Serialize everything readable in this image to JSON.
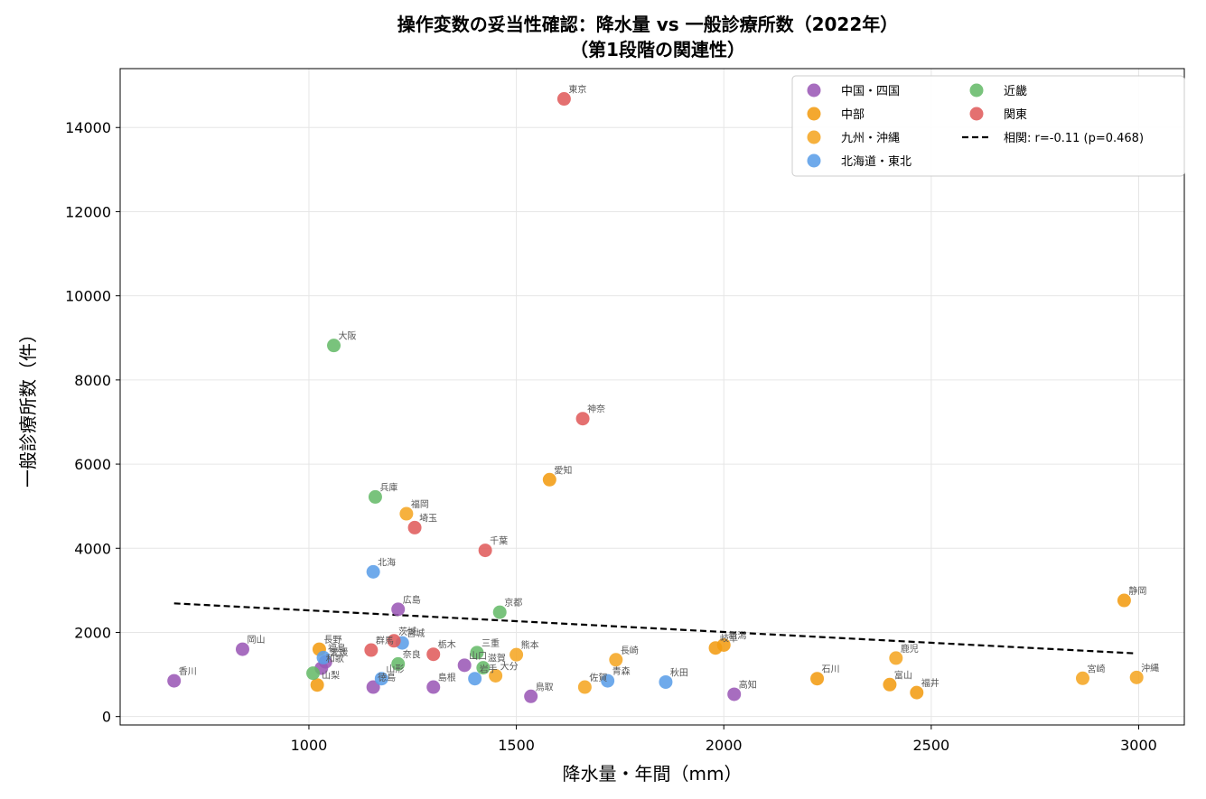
{
  "chart_data": {
    "type": "scatter",
    "title": "操作変数の妥当性確認：降水量 vs 一般診療所数（2022年）",
    "subtitle": "（第1段階の関連性）",
    "xlabel": "降水量・年間（mm）",
    "ylabel": "一般診療所数（件）",
    "xlim": [
      545,
      3110
    ],
    "ylim": [
      -200,
      15400
    ],
    "xticks": [
      1000,
      1500,
      2000,
      2500,
      3000
    ],
    "yticks": [
      0,
      2000,
      4000,
      6000,
      8000,
      10000,
      12000,
      14000
    ],
    "grid": true,
    "legend_position": "top-right",
    "series": [
      {
        "name": "中国・四国",
        "color": "#9b59b6",
        "points": [
          {
            "label": "香川",
            "x": 675,
            "y": 850
          },
          {
            "label": "岡山",
            "x": 840,
            "y": 1600
          },
          {
            "label": "和歌",
            "x": 1030,
            "y": 1150
          },
          {
            "label": "愛媛",
            "x": 1040,
            "y": 1300
          },
          {
            "label": "徳島",
            "x": 1155,
            "y": 700
          },
          {
            "label": "広島",
            "x": 1215,
            "y": 2550
          },
          {
            "label": "島根",
            "x": 1300,
            "y": 700
          },
          {
            "label": "山口",
            "x": 1375,
            "y": 1220
          },
          {
            "label": "鳥取",
            "x": 1535,
            "y": 480
          },
          {
            "label": "高知",
            "x": 2025,
            "y": 530
          }
        ]
      },
      {
        "name": "中部",
        "color": "#f39c12",
        "points": [
          {
            "label": "山梨",
            "x": 1020,
            "y": 750
          },
          {
            "label": "長野",
            "x": 1025,
            "y": 1600
          },
          {
            "label": "愛知",
            "x": 1580,
            "y": 5630
          },
          {
            "label": "岐阜",
            "x": 1980,
            "y": 1630
          },
          {
            "label": "新潟",
            "x": 2000,
            "y": 1700
          },
          {
            "label": "石川",
            "x": 2225,
            "y": 900
          },
          {
            "label": "富山",
            "x": 2400,
            "y": 760
          },
          {
            "label": "福井",
            "x": 2465,
            "y": 570
          },
          {
            "label": "静岡",
            "x": 2965,
            "y": 2760
          }
        ]
      },
      {
        "name": "九州・沖縄",
        "color": "#f5a623",
        "points": [
          {
            "label": "福岡",
            "x": 1235,
            "y": 4820
          },
          {
            "label": "大分",
            "x": 1450,
            "y": 970
          },
          {
            "label": "熊本",
            "x": 1500,
            "y": 1470
          },
          {
            "label": "佐賀",
            "x": 1665,
            "y": 700
          },
          {
            "label": "長崎",
            "x": 1740,
            "y": 1350
          },
          {
            "label": "鹿児",
            "x": 2415,
            "y": 1390
          },
          {
            "label": "宮崎",
            "x": 2865,
            "y": 910
          },
          {
            "label": "沖縄",
            "x": 2995,
            "y": 930
          }
        ]
      },
      {
        "name": "北海道・東北",
        "color": "#5b9ee8",
        "points": [
          {
            "label": "福島",
            "x": 1035,
            "y": 1400
          },
          {
            "label": "北海",
            "x": 1155,
            "y": 3440
          },
          {
            "label": "山形",
            "x": 1175,
            "y": 900
          },
          {
            "label": "宮城",
            "x": 1225,
            "y": 1750
          },
          {
            "label": "岩手",
            "x": 1400,
            "y": 900
          },
          {
            "label": "青森",
            "x": 1720,
            "y": 850
          },
          {
            "label": "秋田",
            "x": 1860,
            "y": 820
          }
        ]
      },
      {
        "name": "近畿",
        "color": "#66bb6a",
        "points": [
          {
            "label": "大阪",
            "x": 1060,
            "y": 8820
          },
          {
            "label": "兵庫",
            "x": 1160,
            "y": 5220
          },
          {
            "label": "奈良",
            "x": 1215,
            "y": 1250
          },
          {
            "label": "三重",
            "x": 1405,
            "y": 1520
          },
          {
            "label": "滋賀",
            "x": 1420,
            "y": 1160
          },
          {
            "label": "京都",
            "x": 1460,
            "y": 2480
          },
          {
            "label": "",
            "x": 1010,
            "y": 1030
          }
        ]
      },
      {
        "name": "関東",
        "color": "#e05c5c",
        "points": [
          {
            "label": "群馬",
            "x": 1150,
            "y": 1580
          },
          {
            "label": "茨城",
            "x": 1205,
            "y": 1800
          },
          {
            "label": "埼玉",
            "x": 1255,
            "y": 4490
          },
          {
            "label": "栃木",
            "x": 1300,
            "y": 1480
          },
          {
            "label": "千葉",
            "x": 1425,
            "y": 3950
          },
          {
            "label": "東京",
            "x": 1615,
            "y": 14680
          },
          {
            "label": "神奈",
            "x": 1660,
            "y": 7080
          }
        ]
      }
    ],
    "trendline": {
      "label": "相関: r=-0.11 (p=0.468)",
      "x": [
        675,
        2995
      ],
      "y": [
        2690,
        1500
      ],
      "color": "#000000",
      "dash": "dashed"
    },
    "legend_order": [
      "中国・四国",
      "中部",
      "九州・沖縄",
      "北海道・東北",
      "近畿",
      "関東",
      "相関: r=-0.11 (p=0.468)"
    ]
  }
}
